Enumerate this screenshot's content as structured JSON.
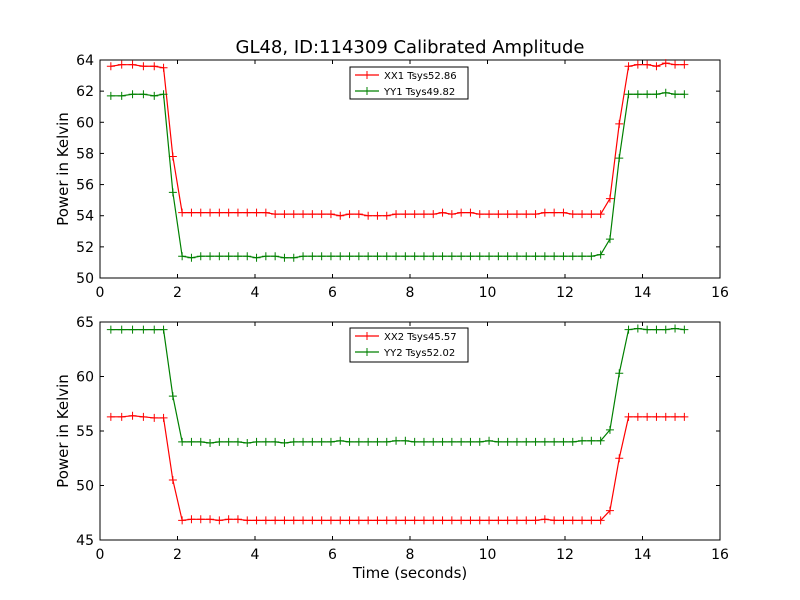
{
  "figure": {
    "title": "GL48, ID:114309 Calibrated Amplitude",
    "xlabel": "Time (seconds)"
  },
  "chart_data": [
    {
      "type": "line",
      "title": "GL48, ID:114309 Calibrated Amplitude",
      "xlabel": "",
      "ylabel": "Power in Kelvin",
      "xlim": [
        0,
        16
      ],
      "ylim": [
        50,
        64
      ],
      "xticks": [
        0,
        2,
        4,
        6,
        8,
        10,
        12,
        14,
        16
      ],
      "yticks": [
        50,
        52,
        54,
        56,
        58,
        60,
        62,
        64
      ],
      "grid": false,
      "legend_position": "top-center",
      "x": [
        0.28,
        0.56,
        0.84,
        1.12,
        1.4,
        1.64,
        1.88,
        2.12,
        2.36,
        2.6,
        2.84,
        3.08,
        3.32,
        3.56,
        3.8,
        4.04,
        4.28,
        4.52,
        4.76,
        5.0,
        5.24,
        5.48,
        5.72,
        5.96,
        6.2,
        6.44,
        6.68,
        6.92,
        7.16,
        7.4,
        7.64,
        7.88,
        8.12,
        8.36,
        8.6,
        8.84,
        9.08,
        9.32,
        9.56,
        9.8,
        10.04,
        10.28,
        10.52,
        10.76,
        11.0,
        11.24,
        11.48,
        11.72,
        11.96,
        12.2,
        12.44,
        12.68,
        12.92,
        13.16,
        13.4,
        13.64,
        13.88,
        14.12,
        14.36,
        14.6,
        14.84,
        15.08
      ],
      "series": [
        {
          "name": "XX1 Tsys52.86",
          "color": "#ff0000",
          "values": [
            63.6,
            63.7,
            63.7,
            63.6,
            63.6,
            63.5,
            57.8,
            54.2,
            54.2,
            54.2,
            54.2,
            54.2,
            54.2,
            54.2,
            54.2,
            54.2,
            54.2,
            54.1,
            54.1,
            54.1,
            54.1,
            54.1,
            54.1,
            54.1,
            54.0,
            54.1,
            54.1,
            54.0,
            54.0,
            54.0,
            54.1,
            54.1,
            54.1,
            54.1,
            54.1,
            54.2,
            54.1,
            54.2,
            54.2,
            54.1,
            54.1,
            54.1,
            54.1,
            54.1,
            54.1,
            54.1,
            54.2,
            54.2,
            54.2,
            54.1,
            54.1,
            54.1,
            54.1,
            55.1,
            59.9,
            63.6,
            63.7,
            63.7,
            63.6,
            63.8,
            63.7,
            63.7
          ]
        },
        {
          "name": "YY1 Tsys49.82",
          "color": "#008000",
          "values": [
            61.7,
            61.7,
            61.8,
            61.8,
            61.7,
            61.8,
            55.5,
            51.4,
            51.3,
            51.4,
            51.4,
            51.4,
            51.4,
            51.4,
            51.4,
            51.3,
            51.4,
            51.4,
            51.3,
            51.3,
            51.4,
            51.4,
            51.4,
            51.4,
            51.4,
            51.4,
            51.4,
            51.4,
            51.4,
            51.4,
            51.4,
            51.4,
            51.4,
            51.4,
            51.4,
            51.4,
            51.4,
            51.4,
            51.4,
            51.4,
            51.4,
            51.4,
            51.4,
            51.4,
            51.4,
            51.4,
            51.4,
            51.4,
            51.4,
            51.4,
            51.4,
            51.4,
            51.5,
            52.5,
            57.7,
            61.8,
            61.8,
            61.8,
            61.8,
            61.9,
            61.8,
            61.8
          ]
        }
      ]
    },
    {
      "type": "line",
      "title": "",
      "xlabel": "Time (seconds)",
      "ylabel": "Power in Kelvin",
      "xlim": [
        0,
        16
      ],
      "ylim": [
        45,
        65
      ],
      "xticks": [
        0,
        2,
        4,
        6,
        8,
        10,
        12,
        14,
        16
      ],
      "yticks": [
        45,
        50,
        55,
        60,
        65
      ],
      "grid": false,
      "legend_position": "top-center",
      "x": [
        0.28,
        0.56,
        0.84,
        1.12,
        1.4,
        1.64,
        1.88,
        2.12,
        2.36,
        2.6,
        2.84,
        3.08,
        3.32,
        3.56,
        3.8,
        4.04,
        4.28,
        4.52,
        4.76,
        5.0,
        5.24,
        5.48,
        5.72,
        5.96,
        6.2,
        6.44,
        6.68,
        6.92,
        7.16,
        7.4,
        7.64,
        7.88,
        8.12,
        8.36,
        8.6,
        8.84,
        9.08,
        9.32,
        9.56,
        9.8,
        10.04,
        10.28,
        10.52,
        10.76,
        11.0,
        11.24,
        11.48,
        11.72,
        11.96,
        12.2,
        12.44,
        12.68,
        12.92,
        13.16,
        13.4,
        13.64,
        13.88,
        14.12,
        14.36,
        14.6,
        14.84,
        15.08
      ],
      "series": [
        {
          "name": "XX2 Tsys45.57",
          "color": "#ff0000",
          "values": [
            56.3,
            56.3,
            56.4,
            56.3,
            56.2,
            56.2,
            50.5,
            46.8,
            46.9,
            46.9,
            46.9,
            46.8,
            46.9,
            46.9,
            46.8,
            46.8,
            46.8,
            46.8,
            46.8,
            46.8,
            46.8,
            46.8,
            46.8,
            46.8,
            46.8,
            46.8,
            46.8,
            46.8,
            46.8,
            46.8,
            46.8,
            46.8,
            46.8,
            46.8,
            46.8,
            46.8,
            46.8,
            46.8,
            46.8,
            46.8,
            46.8,
            46.8,
            46.8,
            46.8,
            46.8,
            46.8,
            46.9,
            46.8,
            46.8,
            46.8,
            46.8,
            46.8,
            46.8,
            47.7,
            52.5,
            56.3,
            56.3,
            56.3,
            56.3,
            56.3,
            56.3,
            56.3
          ]
        },
        {
          "name": "YY2 Tsys52.02",
          "color": "#008000",
          "values": [
            64.3,
            64.3,
            64.3,
            64.3,
            64.3,
            64.3,
            58.2,
            54.0,
            54.0,
            54.0,
            53.9,
            54.0,
            54.0,
            54.0,
            53.9,
            54.0,
            54.0,
            54.0,
            53.9,
            54.0,
            54.0,
            54.0,
            54.0,
            54.0,
            54.1,
            54.0,
            54.0,
            54.0,
            54.0,
            54.0,
            54.1,
            54.1,
            54.0,
            54.0,
            54.0,
            54.0,
            54.0,
            54.0,
            54.0,
            54.0,
            54.1,
            54.0,
            54.0,
            54.0,
            54.0,
            54.0,
            54.0,
            54.0,
            54.0,
            54.0,
            54.1,
            54.1,
            54.1,
            55.1,
            60.3,
            64.3,
            64.4,
            64.3,
            64.3,
            64.3,
            64.4,
            64.3
          ]
        }
      ]
    }
  ]
}
